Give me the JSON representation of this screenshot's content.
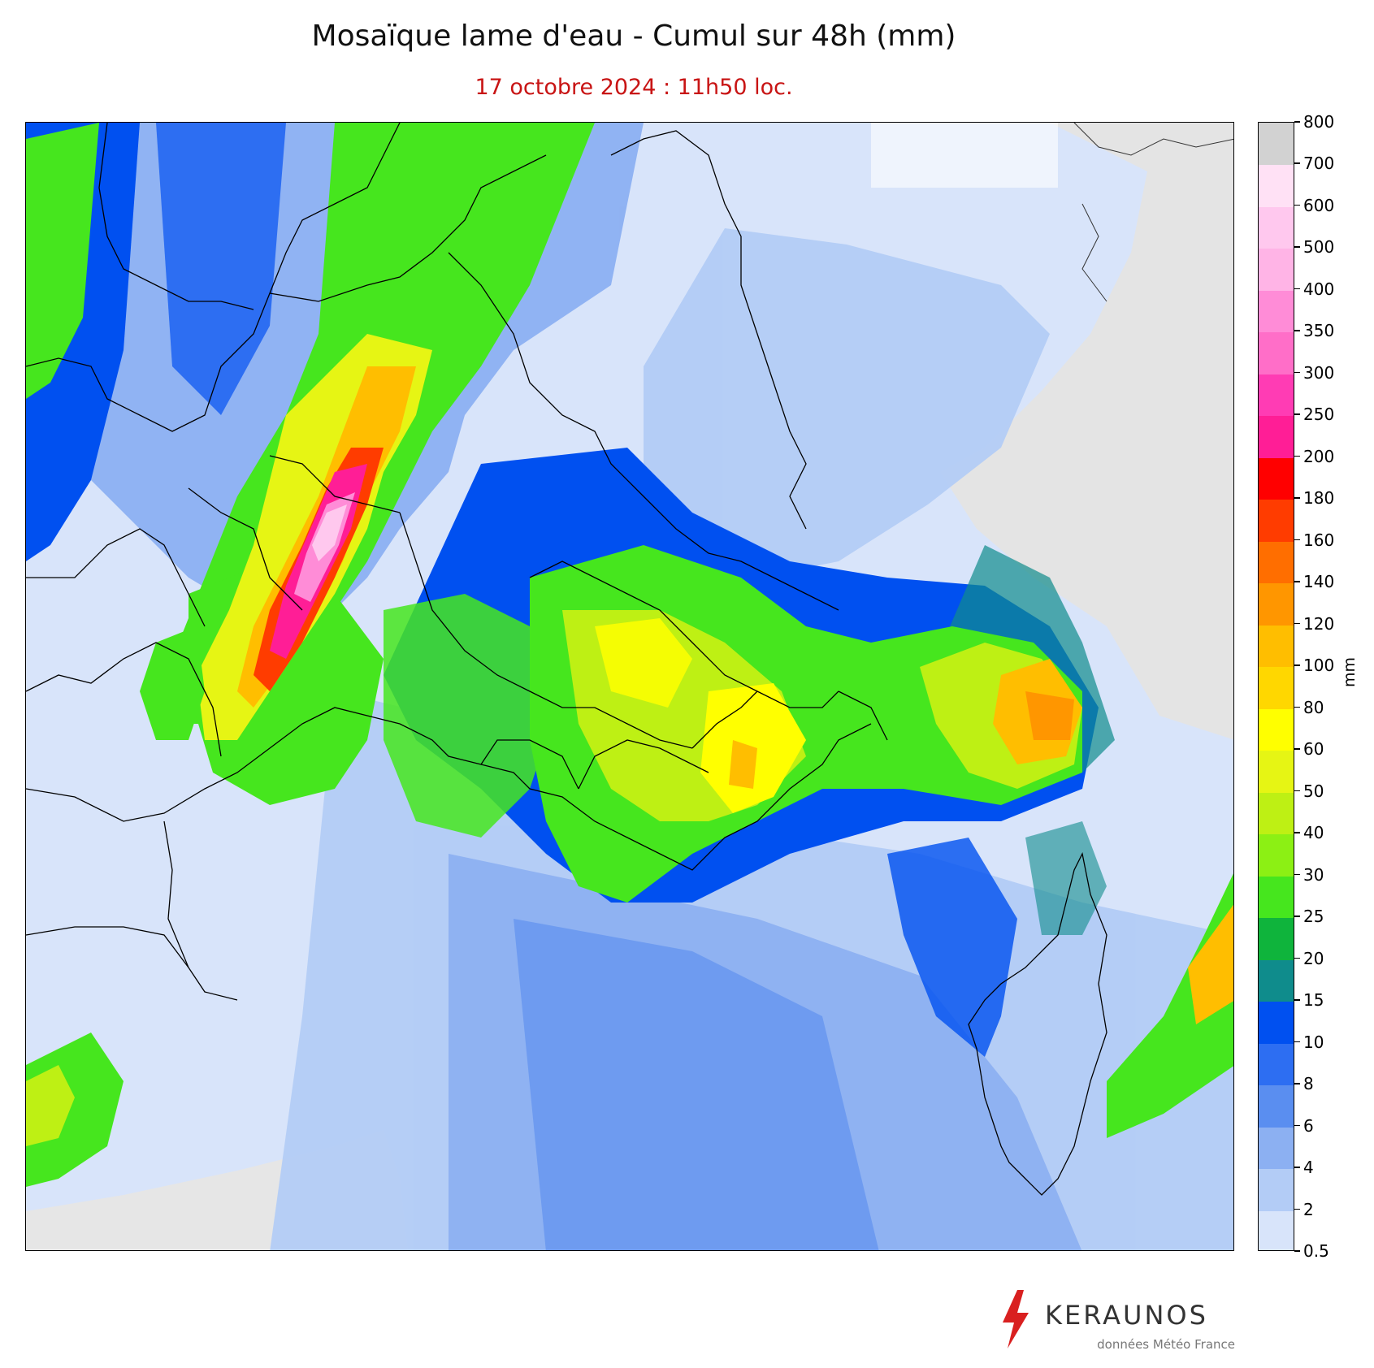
{
  "title": "Mosaïque lame d'eau - Cumul sur 48h (mm)",
  "subtitle": "17 octobre 2024 : 11h50 loc.",
  "colorbar": {
    "unit": "mm",
    "ticks": [
      "0.5",
      "2",
      "4",
      "6",
      "8",
      "10",
      "15",
      "20",
      "25",
      "30",
      "40",
      "50",
      "60",
      "80",
      "100",
      "120",
      "140",
      "160",
      "180",
      "200",
      "250",
      "300",
      "350",
      "400",
      "500",
      "600",
      "700",
      "800"
    ],
    "colors": [
      "#d8e4fa",
      "#b3ccf6",
      "#8cb0f2",
      "#5a8ef0",
      "#2d6ef2",
      "#0050f0",
      "#0f8c8c",
      "#0fb43c",
      "#46e61e",
      "#8cf014",
      "#bef014",
      "#e6f514",
      "#ffff00",
      "#ffd700",
      "#ffbe00",
      "#ff9600",
      "#ff6e00",
      "#ff3c00",
      "#ff0000",
      "#ff1e96",
      "#ff3cb4",
      "#ff6ec8",
      "#ff8cd7",
      "#ffb4e6",
      "#ffc8ee",
      "#ffe1f5",
      "#d2d2d2"
    ]
  },
  "branding": {
    "name": "KERAUNOS",
    "credit": "données Météo France"
  }
}
